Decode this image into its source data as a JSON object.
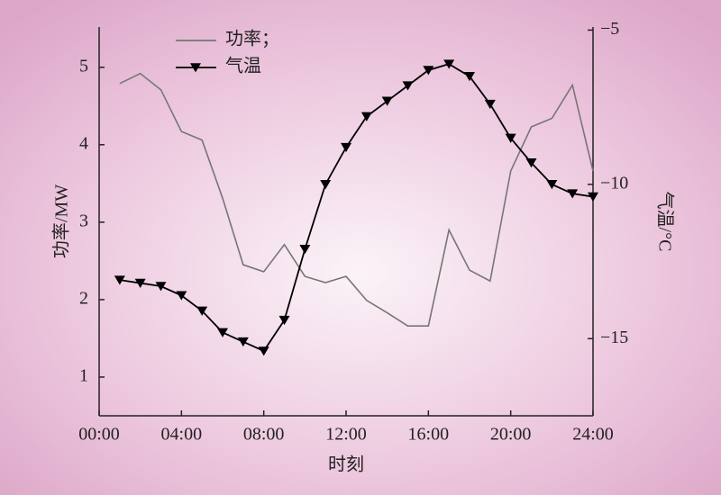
{
  "chart_data": {
    "type": "line",
    "x_label": "时刻",
    "y_label": "功率/MW",
    "y2_label": "气温/°C",
    "x": [
      1,
      2,
      3,
      4,
      5,
      6,
      7,
      8,
      9,
      10,
      11,
      12,
      13,
      14,
      15,
      16,
      17,
      18,
      19,
      20,
      21,
      22,
      23,
      24
    ],
    "xlim": [
      0,
      24
    ],
    "xticks": [
      {
        "value": 0,
        "label": "00:00"
      },
      {
        "value": 4,
        "label": "04:00"
      },
      {
        "value": 8,
        "label": "08:00"
      },
      {
        "value": 12,
        "label": "12:00"
      },
      {
        "value": 16,
        "label": "16:00"
      },
      {
        "value": 20,
        "label": "20:00"
      },
      {
        "value": 24,
        "label": "24:00"
      }
    ],
    "ylim": [
      0.5,
      5.52
    ],
    "yticks": [
      1,
      2,
      3,
      4,
      5
    ],
    "y2lim": [
      -17.5,
      -4.9
    ],
    "y2ticks": [
      {
        "value": -5,
        "label": "−5"
      },
      {
        "value": -10,
        "label": "−10"
      },
      {
        "value": -15,
        "label": "−15"
      }
    ],
    "legend": "upper left",
    "series": [
      {
        "name": "功率；",
        "color": "#767676",
        "values": [
          4.79,
          4.92,
          4.71,
          4.17,
          4.06,
          3.31,
          2.45,
          2.36,
          2.71,
          2.3,
          2.22,
          2.3,
          1.99,
          1.83,
          1.66,
          1.66,
          2.9,
          2.38,
          2.24,
          3.66,
          4.23,
          4.34,
          4.77,
          3.66
        ]
      },
      {
        "name": "气温",
        "color": "#000000",
        "axis": "y2",
        "marker": "v",
        "values": [
          -13.1,
          -13.2,
          -13.3,
          -13.6,
          -14.1,
          -14.8,
          -15.1,
          -15.4,
          -14.4,
          -12.1,
          -10.0,
          -8.8,
          -7.8,
          -7.3,
          -6.8,
          -6.3,
          -6.1,
          -6.5,
          -7.4,
          -8.5,
          -9.3,
          -10.0,
          -10.3,
          -10.4
        ]
      }
    ]
  }
}
